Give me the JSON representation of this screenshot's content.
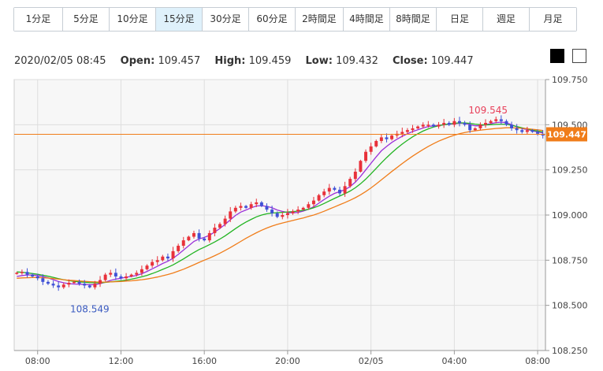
{
  "timeframes": [
    {
      "label": "1分足",
      "active": false
    },
    {
      "label": "5分足",
      "active": false
    },
    {
      "label": "10分足",
      "active": false
    },
    {
      "label": "15分足",
      "active": true
    },
    {
      "label": "30分足",
      "active": false
    },
    {
      "label": "60分足",
      "active": false
    },
    {
      "label": "2時間足",
      "active": false
    },
    {
      "label": "4時間足",
      "active": false
    },
    {
      "label": "8時間足",
      "active": false
    },
    {
      "label": "日足",
      "active": false
    },
    {
      "label": "週足",
      "active": false
    },
    {
      "label": "月足",
      "active": false
    }
  ],
  "ohlc": {
    "datetime": "2020/02/05 08:45",
    "open_label": "Open:",
    "open": "109.457",
    "high_label": "High:",
    "high": "109.459",
    "low_label": "Low:",
    "low": "109.432",
    "close_label": "Close:",
    "close": "109.447"
  },
  "theme_buttons": {
    "dark": "black-theme",
    "light": "white-theme"
  },
  "chart_data": {
    "type": "candlestick",
    "timeframe": "15分足",
    "ylim": [
      108.25,
      109.75
    ],
    "y_ticks": [
      109.75,
      109.5,
      109.25,
      109.0,
      108.75,
      108.5,
      108.25
    ],
    "y_tick_labels": [
      "109.750",
      "109.500",
      "109.250",
      "109.000",
      "108.750",
      "108.500",
      "108.250"
    ],
    "x_tick_labels": [
      "08:00",
      "12:00",
      "16:00",
      "20:00",
      "02/05",
      "04:00",
      "08:00"
    ],
    "x_tick_index": [
      4,
      20,
      36,
      52,
      68,
      84,
      100
    ],
    "current_price": 109.447,
    "current_price_label": "109.447",
    "max_annotation": {
      "value": 109.545,
      "label": "109.545",
      "index": 92
    },
    "min_annotation": {
      "value": 108.549,
      "label": "108.549",
      "index": 14
    },
    "colors": {
      "up": "#e8313a",
      "down": "#3f51d6",
      "ma_short": "#9b30d9",
      "ma_mid": "#22b422",
      "ma_long": "#f07d1a",
      "price_line": "#f07d1a",
      "grid": "#dedede",
      "plot_bg": "#f7f7f7"
    },
    "close": [
      108.68,
      108.685,
      108.67,
      108.66,
      108.65,
      108.63,
      108.62,
      108.61,
      108.6,
      108.615,
      108.625,
      108.63,
      108.62,
      108.61,
      108.6,
      108.62,
      108.64,
      108.67,
      108.68,
      108.66,
      108.65,
      108.66,
      108.67,
      108.68,
      108.7,
      108.72,
      108.74,
      108.75,
      108.77,
      108.76,
      108.8,
      108.83,
      108.86,
      108.88,
      108.9,
      108.87,
      108.86,
      108.9,
      108.93,
      108.95,
      108.98,
      109.02,
      109.04,
      109.05,
      109.04,
      109.06,
      109.07,
      109.05,
      109.03,
      109.01,
      108.99,
      109.0,
      109.01,
      109.02,
      109.03,
      109.04,
      109.06,
      109.08,
      109.11,
      109.13,
      109.15,
      109.14,
      109.12,
      109.16,
      109.2,
      109.24,
      109.3,
      109.35,
      109.38,
      109.41,
      109.43,
      109.42,
      109.44,
      109.45,
      109.46,
      109.47,
      109.48,
      109.49,
      109.5,
      109.5,
      109.49,
      109.5,
      109.51,
      109.5,
      109.52,
      109.51,
      109.5,
      109.47,
      109.48,
      109.5,
      109.51,
      109.52,
      109.53,
      109.52,
      109.5,
      109.48,
      109.47,
      109.46,
      109.47,
      109.46,
      109.45,
      109.44
    ],
    "series": [
      {
        "name": "",
        "values": [
          108.66,
          108.665,
          108.668,
          108.668,
          108.665,
          108.66,
          108.652,
          108.642,
          108.632,
          108.625,
          108.62,
          108.618,
          108.617,
          108.616,
          108.614,
          108.615,
          108.62,
          108.628,
          108.638,
          108.645,
          108.65,
          108.656,
          108.66,
          108.666,
          108.675,
          108.688,
          108.702,
          108.716,
          108.732,
          108.744,
          108.76,
          108.782,
          108.806,
          108.83,
          108.854,
          108.868,
          108.876,
          108.888,
          108.906,
          108.926,
          108.948,
          108.974,
          108.998,
          109.016,
          109.028,
          109.04,
          109.05,
          109.052,
          109.048,
          109.04,
          109.028,
          109.02,
          109.014,
          109.012,
          109.015,
          109.022,
          109.032,
          109.046,
          109.066,
          109.086,
          109.104,
          109.12,
          109.13,
          109.14,
          109.158,
          109.182,
          109.214,
          109.25,
          109.286,
          109.322,
          109.356,
          109.38,
          109.402,
          109.42,
          109.436,
          109.45,
          109.462,
          109.472,
          109.482,
          109.49,
          109.494,
          109.496,
          109.5,
          109.502,
          109.506,
          109.508,
          109.508,
          109.5,
          109.494,
          109.494,
          109.5,
          109.506,
          109.512,
          109.514,
          109.512,
          109.5,
          109.488,
          109.478,
          109.474,
          109.466,
          109.46,
          109.455
        ]
      },
      {
        "name": "",
        "values": [
          108.685,
          108.683,
          108.68,
          108.676,
          108.672,
          108.667,
          108.661,
          108.655,
          108.648,
          108.642,
          108.637,
          108.633,
          108.63,
          108.628,
          108.626,
          108.625,
          108.625,
          108.627,
          108.63,
          108.633,
          108.636,
          108.64,
          108.645,
          108.651,
          108.658,
          108.666,
          108.676,
          108.687,
          108.699,
          108.711,
          108.724,
          108.74,
          108.757,
          108.775,
          108.793,
          108.809,
          108.822,
          108.836,
          108.851,
          108.867,
          108.885,
          108.905,
          108.925,
          108.944,
          108.961,
          108.976,
          108.99,
          109.0,
          109.007,
          109.011,
          109.013,
          109.015,
          109.017,
          109.019,
          109.022,
          109.026,
          109.032,
          109.04,
          109.051,
          109.064,
          109.078,
          109.092,
          109.105,
          109.118,
          109.133,
          109.151,
          109.173,
          109.199,
          109.228,
          109.258,
          109.289,
          109.318,
          109.345,
          109.37,
          109.393,
          109.414,
          109.433,
          109.45,
          109.465,
          109.477,
          109.487,
          109.494,
          109.5,
          109.504,
          109.508,
          109.51,
          109.51,
          109.507,
          109.503,
          109.5,
          109.499,
          109.5,
          109.502,
          109.503,
          109.502,
          109.497,
          109.49,
          109.483,
          109.477,
          109.47,
          109.465,
          109.46
        ]
      },
      {
        "name": "",
        "values": [
          108.65,
          108.652,
          108.653,
          108.654,
          108.654,
          108.653,
          108.651,
          108.648,
          108.645,
          108.642,
          108.639,
          108.637,
          108.635,
          108.633,
          108.631,
          108.63,
          108.629,
          108.629,
          108.63,
          108.631,
          108.632,
          108.634,
          108.636,
          108.639,
          108.642,
          108.646,
          108.651,
          108.657,
          108.664,
          108.671,
          108.679,
          108.689,
          108.7,
          108.712,
          108.725,
          108.738,
          108.75,
          108.762,
          108.775,
          108.789,
          108.804,
          108.82,
          108.837,
          108.854,
          108.871,
          108.887,
          108.902,
          108.916,
          108.928,
          108.939,
          108.948,
          108.956,
          108.963,
          108.97,
          108.977,
          108.984,
          108.992,
          109.0,
          109.01,
          109.021,
          109.033,
          109.045,
          109.057,
          109.069,
          109.082,
          109.096,
          109.112,
          109.13,
          109.15,
          109.172,
          109.195,
          109.218,
          109.241,
          109.263,
          109.285,
          109.306,
          109.326,
          109.345,
          109.363,
          109.38,
          109.395,
          109.409,
          109.421,
          109.432,
          109.442,
          109.45,
          109.457,
          109.462,
          109.466,
          109.47,
          109.473,
          109.476,
          109.479,
          109.481,
          109.483,
          109.483,
          109.482,
          109.48,
          109.478,
          109.475,
          109.472,
          109.468
        ]
      }
    ]
  }
}
